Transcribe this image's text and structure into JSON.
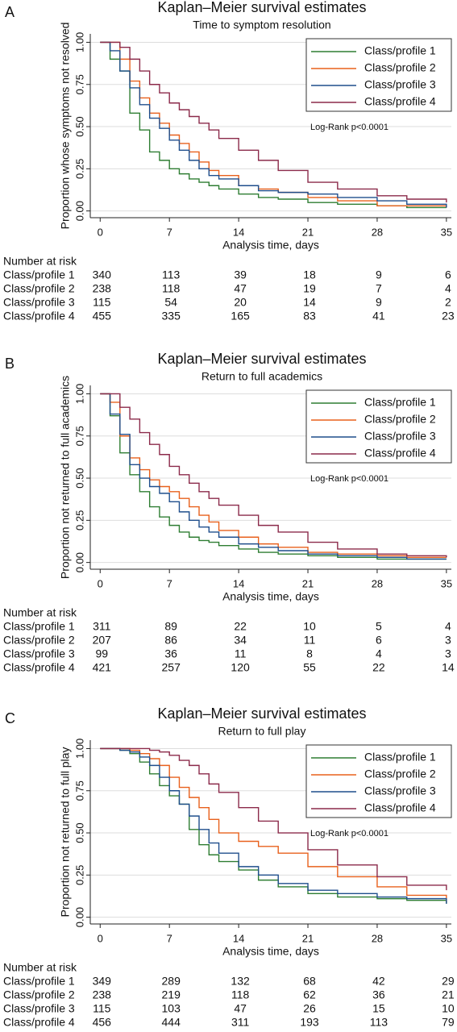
{
  "chart_data": [
    {
      "type": "line",
      "step": "post",
      "panel": "A",
      "title": "Kaplan–Meier survival estimates",
      "subtitle": "Time to symptom resolution",
      "x_label": "Analysis time, days",
      "y_label": "Proportion whose symptoms not resolved",
      "annotation": "Log-Rank p<0.0001",
      "legend": "upper-right",
      "grid": true,
      "xlim": [
        -1,
        35.5
      ],
      "ylim": [
        -0.04,
        1.05
      ],
      "xticks": [
        0,
        7,
        14,
        21,
        28,
        35
      ],
      "yticks": [
        {
          "value": 0,
          "label": "0.00"
        },
        {
          "value": 0.25,
          "label": "0.25"
        },
        {
          "value": 0.5,
          "label": "0.50"
        },
        {
          "value": 0.75,
          "label": "0.75"
        },
        {
          "value": 1,
          "label": "1.00"
        }
      ],
      "x": [
        0,
        1,
        2,
        3,
        4,
        5,
        6,
        7,
        8,
        9,
        10,
        11,
        12,
        14,
        16,
        18,
        21,
        24,
        28,
        31,
        35
      ],
      "risk_title": "Number at risk",
      "series": [
        {
          "name": "Class/profile 1",
          "color": "#2e7d32",
          "values": [
            1,
            0.9,
            0.83,
            0.58,
            0.48,
            0.35,
            0.3,
            0.25,
            0.22,
            0.19,
            0.17,
            0.15,
            0.13,
            0.1,
            0.08,
            0.07,
            0.05,
            0.04,
            0.03,
            0.02,
            0.02
          ],
          "at_risk": [
            340,
            113,
            39,
            18,
            9,
            6
          ]
        },
        {
          "name": "Class/profile 2",
          "color": "#e8601c",
          "values": [
            1,
            1,
            0.9,
            0.77,
            0.67,
            0.58,
            0.52,
            0.45,
            0.4,
            0.35,
            0.29,
            0.24,
            0.21,
            0.15,
            0.13,
            0.11,
            0.08,
            0.06,
            0.03,
            0.03,
            0.02
          ],
          "at_risk": [
            238,
            118,
            47,
            19,
            7,
            4
          ]
        },
        {
          "name": "Class/profile 3",
          "color": "#1f4e8c",
          "values": [
            1,
            0.95,
            0.83,
            0.73,
            0.63,
            0.55,
            0.49,
            0.42,
            0.36,
            0.3,
            0.25,
            0.21,
            0.19,
            0.15,
            0.12,
            0.11,
            0.1,
            0.08,
            0.06,
            0.04,
            0.02
          ],
          "at_risk": [
            115,
            54,
            20,
            14,
            9,
            2
          ]
        },
        {
          "name": "Class/profile 4",
          "color": "#8b2a4a",
          "values": [
            1,
            1,
            0.97,
            0.9,
            0.83,
            0.75,
            0.7,
            0.64,
            0.6,
            0.56,
            0.52,
            0.48,
            0.43,
            0.36,
            0.3,
            0.24,
            0.17,
            0.13,
            0.09,
            0.07,
            0.05
          ],
          "at_risk": [
            455,
            335,
            165,
            83,
            41,
            23
          ]
        }
      ]
    },
    {
      "type": "line",
      "step": "post",
      "panel": "B",
      "title": "Kaplan–Meier survival estimates",
      "subtitle": "Return to full academics",
      "x_label": "Analysis time, days",
      "y_label": "Proportion not returned to full academics",
      "annotation": "Log-Rank p<0.0001",
      "legend": "upper-right",
      "grid": true,
      "xlim": [
        -1,
        35.5
      ],
      "ylim": [
        -0.04,
        1.05
      ],
      "xticks": [
        0,
        7,
        14,
        21,
        28,
        35
      ],
      "yticks": [
        {
          "value": 0,
          "label": "0.00"
        },
        {
          "value": 0.25,
          "label": "0.25"
        },
        {
          "value": 0.5,
          "label": "0.50"
        },
        {
          "value": 0.75,
          "label": "0.75"
        },
        {
          "value": 1,
          "label": "1.00"
        }
      ],
      "x": [
        0,
        1,
        2,
        3,
        4,
        5,
        6,
        7,
        8,
        9,
        10,
        11,
        12,
        14,
        16,
        18,
        21,
        24,
        28,
        31,
        35
      ],
      "risk_title": "Number at risk",
      "series": [
        {
          "name": "Class/profile 1",
          "color": "#2e7d32",
          "values": [
            1,
            0.87,
            0.65,
            0.52,
            0.42,
            0.33,
            0.27,
            0.22,
            0.18,
            0.15,
            0.13,
            0.12,
            0.1,
            0.08,
            0.06,
            0.05,
            0.04,
            0.03,
            0.02,
            0.02,
            0.02
          ],
          "at_risk": [
            311,
            89,
            22,
            10,
            5,
            4
          ]
        },
        {
          "name": "Class/profile 2",
          "color": "#e8601c",
          "values": [
            1,
            0.95,
            0.75,
            0.62,
            0.55,
            0.49,
            0.45,
            0.42,
            0.38,
            0.33,
            0.28,
            0.24,
            0.19,
            0.15,
            0.11,
            0.09,
            0.06,
            0.05,
            0.04,
            0.03,
            0.03
          ],
          "at_risk": [
            207,
            86,
            34,
            11,
            6,
            3
          ]
        },
        {
          "name": "Class/profile 3",
          "color": "#1f4e8c",
          "values": [
            1,
            0.88,
            0.76,
            0.58,
            0.5,
            0.45,
            0.41,
            0.36,
            0.3,
            0.25,
            0.21,
            0.18,
            0.15,
            0.11,
            0.09,
            0.07,
            0.05,
            0.04,
            0.03,
            0.02,
            0.02
          ],
          "at_risk": [
            99,
            36,
            11,
            8,
            4,
            3
          ]
        },
        {
          "name": "Class/profile 4",
          "color": "#8b2a4a",
          "values": [
            1,
            1,
            0.92,
            0.85,
            0.77,
            0.7,
            0.64,
            0.57,
            0.52,
            0.47,
            0.42,
            0.38,
            0.34,
            0.28,
            0.22,
            0.18,
            0.12,
            0.08,
            0.05,
            0.04,
            0.03
          ],
          "at_risk": [
            421,
            257,
            120,
            55,
            22,
            14
          ]
        }
      ]
    },
    {
      "type": "line",
      "step": "post",
      "panel": "C",
      "title": "Kaplan–Meier survival estimates",
      "subtitle": "Return to full play",
      "x_label": "Analysis time, days",
      "y_label": "Proportion not returned to full play",
      "annotation": "Log-Rank p<0.0001",
      "legend": "upper-right",
      "grid": true,
      "xlim": [
        -1,
        35.5
      ],
      "ylim": [
        -0.04,
        1.05
      ],
      "xticks": [
        0,
        7,
        14,
        21,
        28,
        35
      ],
      "yticks": [
        {
          "value": 0,
          "label": "0.00"
        },
        {
          "value": 0.25,
          "label": "0.25"
        },
        {
          "value": 0.5,
          "label": "0.50"
        },
        {
          "value": 0.75,
          "label": "0.75"
        },
        {
          "value": 1,
          "label": "1.00"
        }
      ],
      "x": [
        0,
        1,
        2,
        3,
        4,
        5,
        6,
        7,
        8,
        9,
        10,
        11,
        12,
        14,
        16,
        18,
        21,
        24,
        28,
        31,
        35
      ],
      "risk_title": "Number at risk",
      "series": [
        {
          "name": "Class/profile 1",
          "color": "#2e7d32",
          "values": [
            1,
            1,
            0.99,
            0.97,
            0.92,
            0.85,
            0.78,
            0.72,
            0.67,
            0.52,
            0.43,
            0.37,
            0.33,
            0.28,
            0.22,
            0.18,
            0.14,
            0.12,
            0.11,
            0.1,
            0.08
          ],
          "at_risk": [
            349,
            289,
            132,
            68,
            42,
            29
          ]
        },
        {
          "name": "Class/profile 2",
          "color": "#e8601c",
          "values": [
            1,
            1,
            1,
            0.99,
            0.97,
            0.94,
            0.9,
            0.83,
            0.77,
            0.71,
            0.65,
            0.58,
            0.5,
            0.45,
            0.42,
            0.38,
            0.3,
            0.24,
            0.18,
            0.13,
            0.09
          ],
          "at_risk": [
            238,
            219,
            118,
            62,
            36,
            21
          ]
        },
        {
          "name": "Class/profile 3",
          "color": "#1f4e8c",
          "values": [
            1,
            1,
            0.99,
            0.98,
            0.95,
            0.9,
            0.83,
            0.75,
            0.67,
            0.6,
            0.52,
            0.44,
            0.38,
            0.3,
            0.25,
            0.2,
            0.16,
            0.14,
            0.12,
            0.11,
            0.08
          ],
          "at_risk": [
            115,
            103,
            47,
            26,
            15,
            10
          ]
        },
        {
          "name": "Class/profile 4",
          "color": "#8b2a4a",
          "values": [
            1,
            1,
            1,
            1,
            1,
            0.99,
            0.98,
            0.96,
            0.93,
            0.9,
            0.85,
            0.79,
            0.74,
            0.65,
            0.57,
            0.5,
            0.4,
            0.31,
            0.24,
            0.19,
            0.16
          ],
          "at_risk": [
            456,
            444,
            311,
            193,
            113,
            79
          ]
        }
      ]
    }
  ]
}
